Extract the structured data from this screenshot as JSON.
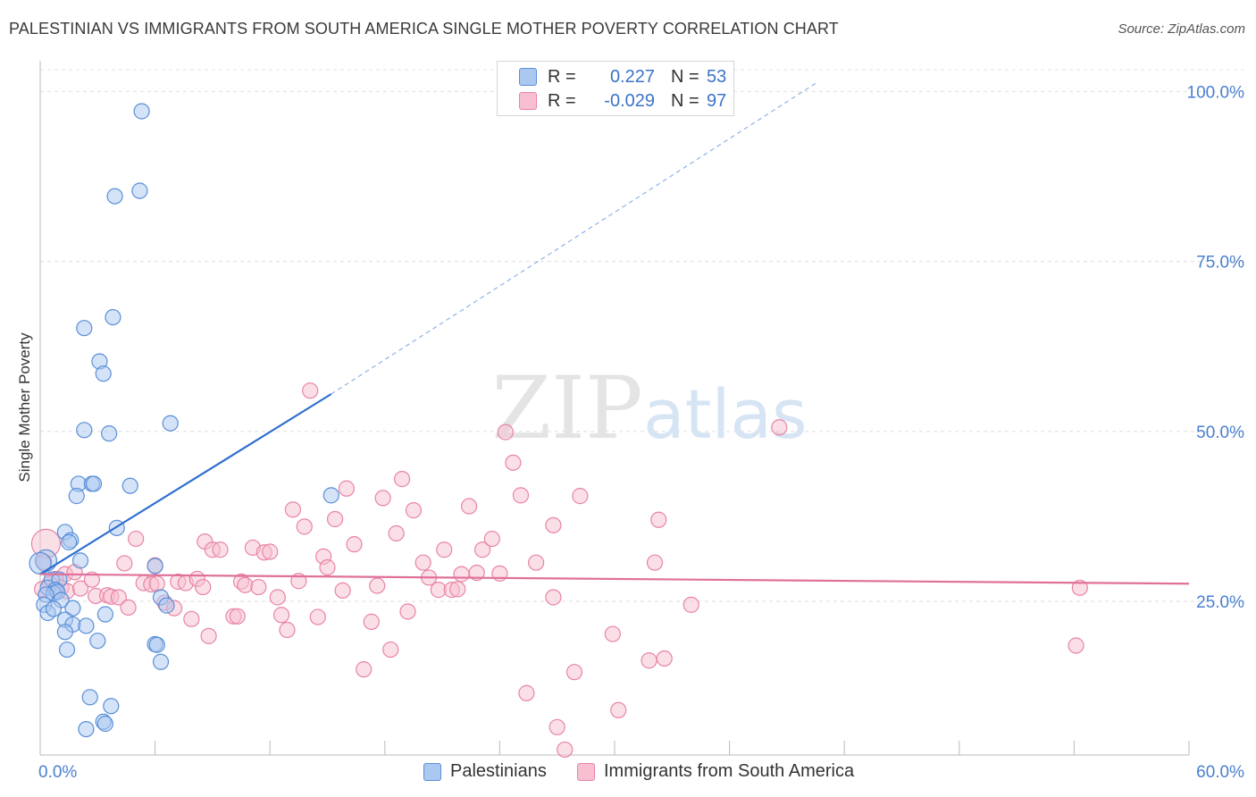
{
  "header": {
    "title": "PALESTINIAN VS IMMIGRANTS FROM SOUTH AMERICA SINGLE MOTHER POVERTY CORRELATION CHART",
    "source": "Source: ZipAtlas.com"
  },
  "watermark": {
    "zip": "ZIP",
    "atlas": "atlas"
  },
  "legend": {
    "rows": [
      {
        "r_label": "R =",
        "r_value": "0.227",
        "n_label": "N =",
        "n_value": "53",
        "color": "#aac8f0",
        "border": "#5a8fd8"
      },
      {
        "r_label": "R =",
        "r_value": "-0.029",
        "n_label": "N =",
        "n_value": "97",
        "color": "#f8bfd0",
        "border": "#e884a6"
      }
    ]
  },
  "bottom_legend": {
    "items": [
      {
        "label": "Palestinians",
        "color": "#aac8f0",
        "border": "#5a8fd8"
      },
      {
        "label": "Immigrants from South America",
        "color": "#f8bfd0",
        "border": "#e884a6"
      }
    ]
  },
  "chart_data": {
    "type": "scatter",
    "title": "PALESTINIAN VS IMMIGRANTS FROM SOUTH AMERICA SINGLE MOTHER POVERTY CORRELATION CHART",
    "xlabel": "",
    "ylabel": "Single Mother Poverty",
    "xlim": [
      0,
      60
    ],
    "ylim": [
      2.4,
      104
    ],
    "x_tick_labels": [
      {
        "value": 0,
        "label": "0.0%"
      },
      {
        "value": 60,
        "label": "60.0%"
      }
    ],
    "y_tick_labels": [
      {
        "value": 100,
        "label": "100.0%"
      },
      {
        "value": 75,
        "label": "75.0%"
      },
      {
        "value": 50,
        "label": "50.0%"
      },
      {
        "value": 25,
        "label": "25.0%"
      }
    ],
    "x_minor_ticks": [
      6,
      12,
      18,
      24,
      30,
      36,
      42,
      48,
      54,
      60
    ],
    "grid": true,
    "series": [
      {
        "name": "Palestinians",
        "color": "#aac8f0",
        "stroke": "#5a8fd8",
        "R": 0.227,
        "N": 53,
        "trend": {
          "x0": 0,
          "y0": 29.0,
          "x1": 15.2,
          "y1": 55.5,
          "dash_to_x": 40.5,
          "dash_to_y": 101.2
        },
        "points": [
          [
            5.3,
            97.1
          ],
          [
            3.9,
            84.6
          ],
          [
            5.2,
            85.4
          ],
          [
            3.8,
            66.8
          ],
          [
            2.3,
            65.2
          ],
          [
            3.1,
            60.3
          ],
          [
            3.3,
            58.5
          ],
          [
            2.3,
            50.2
          ],
          [
            3.6,
            49.7
          ],
          [
            6.8,
            51.2
          ],
          [
            2.0,
            42.3
          ],
          [
            2.7,
            42.3
          ],
          [
            2.8,
            42.3
          ],
          [
            4.7,
            42.0
          ],
          [
            1.9,
            40.5
          ],
          [
            15.2,
            40.6
          ],
          [
            4.0,
            35.8
          ],
          [
            1.3,
            35.2
          ],
          [
            1.6,
            34.0
          ],
          [
            1.5,
            33.7
          ],
          [
            0.3,
            31.0
          ],
          [
            2.1,
            31.0
          ],
          [
            0.0,
            30.6
          ],
          [
            6.0,
            30.2
          ],
          [
            0.6,
            28.2
          ],
          [
            1.0,
            28.2
          ],
          [
            0.4,
            27.0
          ],
          [
            0.8,
            26.7
          ],
          [
            0.7,
            26.2
          ],
          [
            0.9,
            26.4
          ],
          [
            0.3,
            26.0
          ],
          [
            6.3,
            25.6
          ],
          [
            1.1,
            25.2
          ],
          [
            0.2,
            24.5
          ],
          [
            1.7,
            24.0
          ],
          [
            0.4,
            23.3
          ],
          [
            0.7,
            23.9
          ],
          [
            6.6,
            24.4
          ],
          [
            3.4,
            23.1
          ],
          [
            1.3,
            22.3
          ],
          [
            1.7,
            21.6
          ],
          [
            2.4,
            21.4
          ],
          [
            1.3,
            20.5
          ],
          [
            3.0,
            19.2
          ],
          [
            6.0,
            18.7
          ],
          [
            6.1,
            18.6
          ],
          [
            1.4,
            17.9
          ],
          [
            6.3,
            16.1
          ],
          [
            2.6,
            10.9
          ],
          [
            3.7,
            9.6
          ],
          [
            3.3,
            7.3
          ],
          [
            3.4,
            7.0
          ],
          [
            2.4,
            6.2
          ]
        ]
      },
      {
        "name": "Immigrants from South America",
        "color": "#f8bfd0",
        "stroke": "#e884a6",
        "R": -0.029,
        "N": 97,
        "trend": {
          "x0": 0,
          "y0": 29.0,
          "x1": 60,
          "y1": 27.6
        },
        "points": [
          [
            0.3,
            33.5
          ],
          [
            0.2,
            30.8
          ],
          [
            1.3,
            29.0
          ],
          [
            0.8,
            28.3
          ],
          [
            1.1,
            27.0
          ],
          [
            1.4,
            26.5
          ],
          [
            0.5,
            27.6
          ],
          [
            2.1,
            26.9
          ],
          [
            2.7,
            28.2
          ],
          [
            2.9,
            25.8
          ],
          [
            3.5,
            25.9
          ],
          [
            3.7,
            25.7
          ],
          [
            4.1,
            25.6
          ],
          [
            4.6,
            24.1
          ],
          [
            5.0,
            34.2
          ],
          [
            4.4,
            30.6
          ],
          [
            5.4,
            27.7
          ],
          [
            5.8,
            27.5
          ],
          [
            6.1,
            27.6
          ],
          [
            6.0,
            30.3
          ],
          [
            6.5,
            24.8
          ],
          [
            7.0,
            24.0
          ],
          [
            7.2,
            27.9
          ],
          [
            7.6,
            27.7
          ],
          [
            7.9,
            22.4
          ],
          [
            8.2,
            28.3
          ],
          [
            8.5,
            27.1
          ],
          [
            8.6,
            33.8
          ],
          [
            9.0,
            32.6
          ],
          [
            9.4,
            32.6
          ],
          [
            8.8,
            19.9
          ],
          [
            10.1,
            22.8
          ],
          [
            10.3,
            22.8
          ],
          [
            10.5,
            27.9
          ],
          [
            10.7,
            27.4
          ],
          [
            11.1,
            32.9
          ],
          [
            11.4,
            27.1
          ],
          [
            11.7,
            32.2
          ],
          [
            12.0,
            32.3
          ],
          [
            12.4,
            25.6
          ],
          [
            12.6,
            23.0
          ],
          [
            12.9,
            20.8
          ],
          [
            13.2,
            38.5
          ],
          [
            13.5,
            28.0
          ],
          [
            13.8,
            36.0
          ],
          [
            14.1,
            56.0
          ],
          [
            14.5,
            22.7
          ],
          [
            14.8,
            31.6
          ],
          [
            15.0,
            30.0
          ],
          [
            15.4,
            37.1
          ],
          [
            15.8,
            26.6
          ],
          [
            16.0,
            41.6
          ],
          [
            16.4,
            33.4
          ],
          [
            16.9,
            15.0
          ],
          [
            17.3,
            22.0
          ],
          [
            17.6,
            27.3
          ],
          [
            17.9,
            40.2
          ],
          [
            18.3,
            17.9
          ],
          [
            18.6,
            35.0
          ],
          [
            18.9,
            43.0
          ],
          [
            19.2,
            23.5
          ],
          [
            19.5,
            38.4
          ],
          [
            20.0,
            30.7
          ],
          [
            20.3,
            28.5
          ],
          [
            20.8,
            26.7
          ],
          [
            21.1,
            32.6
          ],
          [
            21.5,
            26.7
          ],
          [
            21.8,
            26.8
          ],
          [
            22.0,
            29.0
          ],
          [
            22.4,
            39.0
          ],
          [
            22.8,
            29.2
          ],
          [
            23.1,
            32.6
          ],
          [
            23.6,
            34.2
          ],
          [
            24.0,
            29.1
          ],
          [
            24.3,
            49.9
          ],
          [
            24.7,
            45.4
          ],
          [
            25.1,
            40.6
          ],
          [
            25.4,
            11.5
          ],
          [
            25.9,
            30.7
          ],
          [
            26.8,
            25.6
          ],
          [
            27.0,
            6.5
          ],
          [
            27.4,
            3.2
          ],
          [
            27.9,
            14.6
          ],
          [
            28.2,
            40.5
          ],
          [
            26.8,
            36.2
          ],
          [
            29.9,
            20.2
          ],
          [
            30.2,
            9.0
          ],
          [
            31.8,
            16.3
          ],
          [
            32.1,
            30.7
          ],
          [
            32.3,
            37.0
          ],
          [
            32.6,
            16.6
          ],
          [
            34.0,
            24.5
          ],
          [
            38.6,
            50.6
          ],
          [
            54.1,
            18.5
          ],
          [
            54.3,
            27.0
          ],
          [
            0.1,
            26.8
          ],
          [
            1.8,
            29.3
          ]
        ]
      }
    ]
  }
}
